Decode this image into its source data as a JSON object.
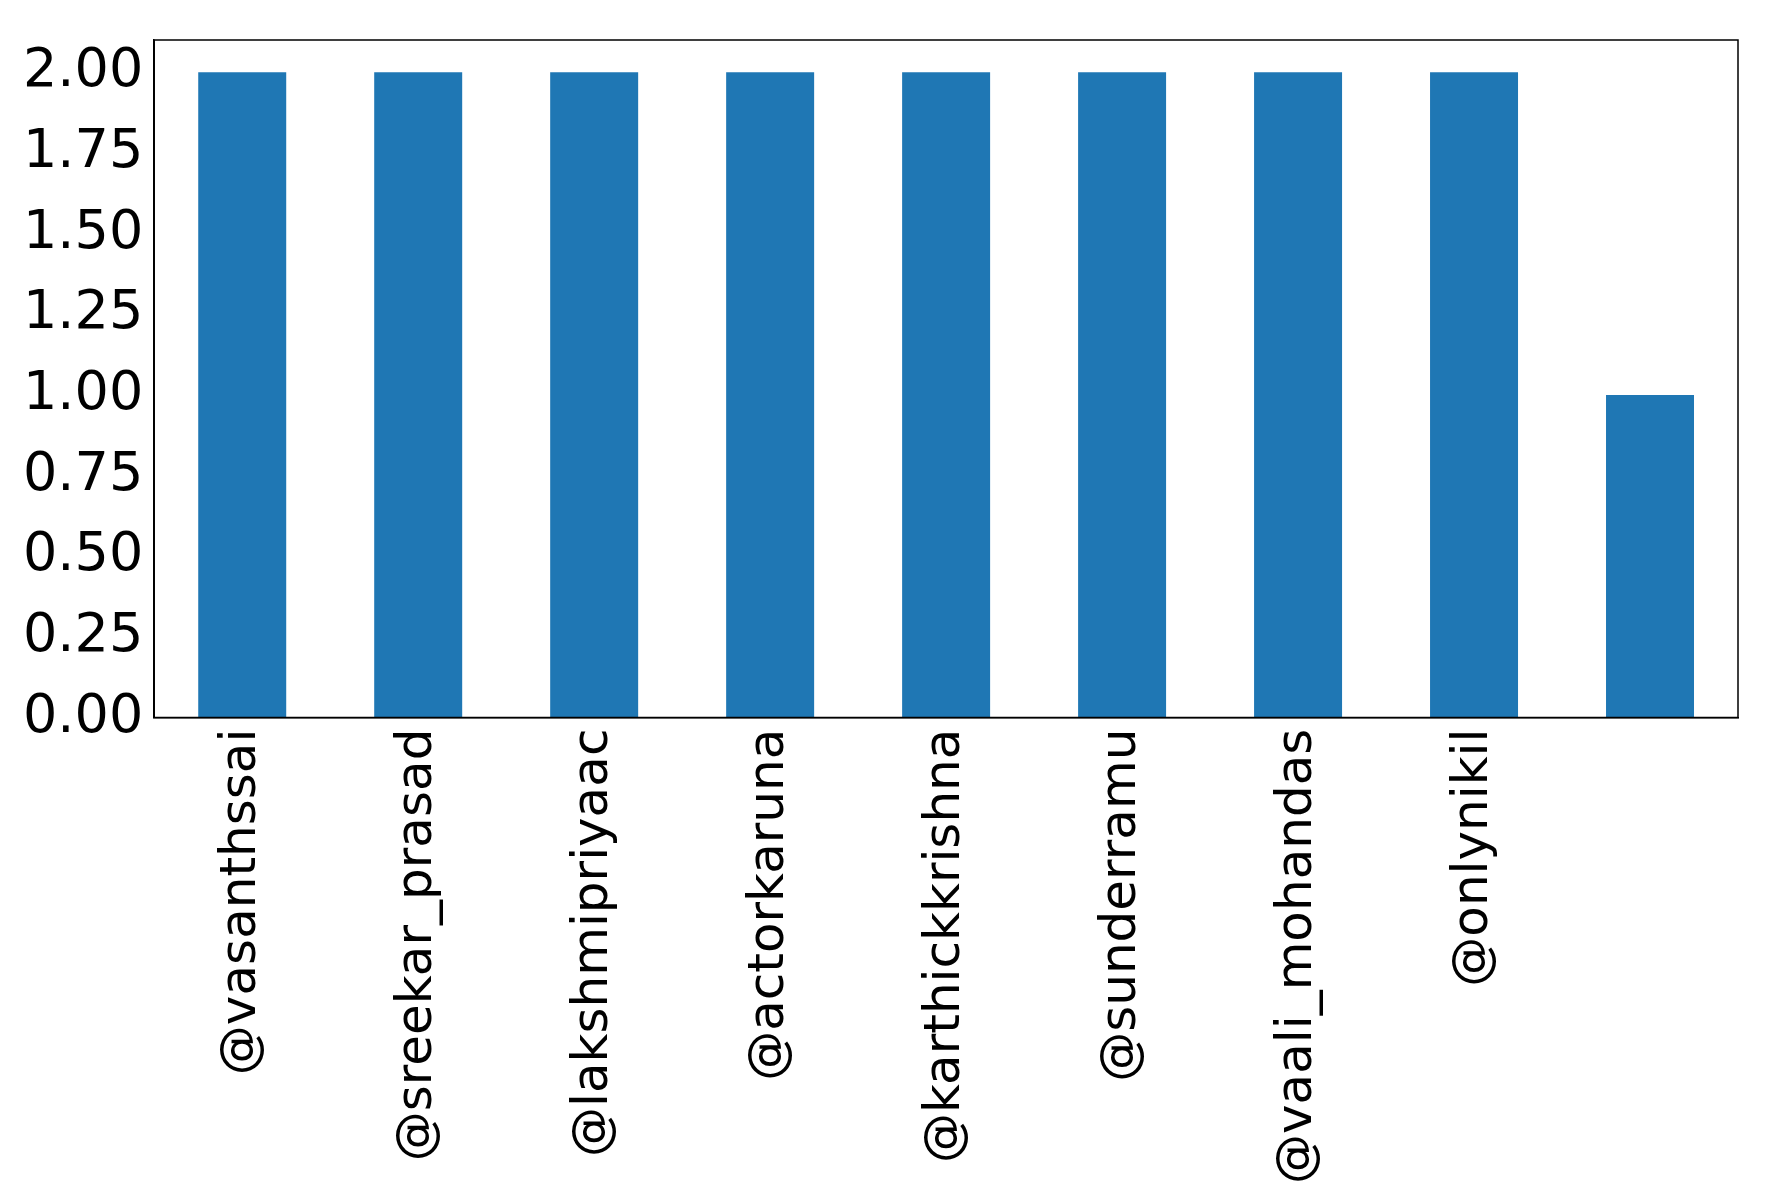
{
  "chart_data": {
    "type": "bar",
    "categories": [
      "@vasanthssai",
      "@sreekar_prasad",
      "@lakshmipriyaac",
      "@actorkaruna",
      "@karthickkrishna",
      "@sunderramu",
      "@vaali_mohandas",
      "@onlynikil",
      null
    ],
    "values": [
      2,
      2,
      2,
      2,
      2,
      2,
      2,
      2,
      1
    ],
    "color": "#1f77b4",
    "ylim": [
      0,
      2.1
    ],
    "yticks": [
      {
        "value": 0,
        "label": "0.00"
      },
      {
        "value": 0.25,
        "label": "0.25"
      },
      {
        "value": 0.5,
        "label": "0.50"
      },
      {
        "value": 0.75,
        "label": "0.75"
      },
      {
        "value": 1,
        "label": "1.00"
      },
      {
        "value": 1.25,
        "label": "1.25"
      },
      {
        "value": 1.5,
        "label": "1.50"
      },
      {
        "value": 1.75,
        "label": "1.75"
      },
      {
        "value": 2,
        "label": "2.00"
      }
    ],
    "grid": false,
    "legend": false
  }
}
